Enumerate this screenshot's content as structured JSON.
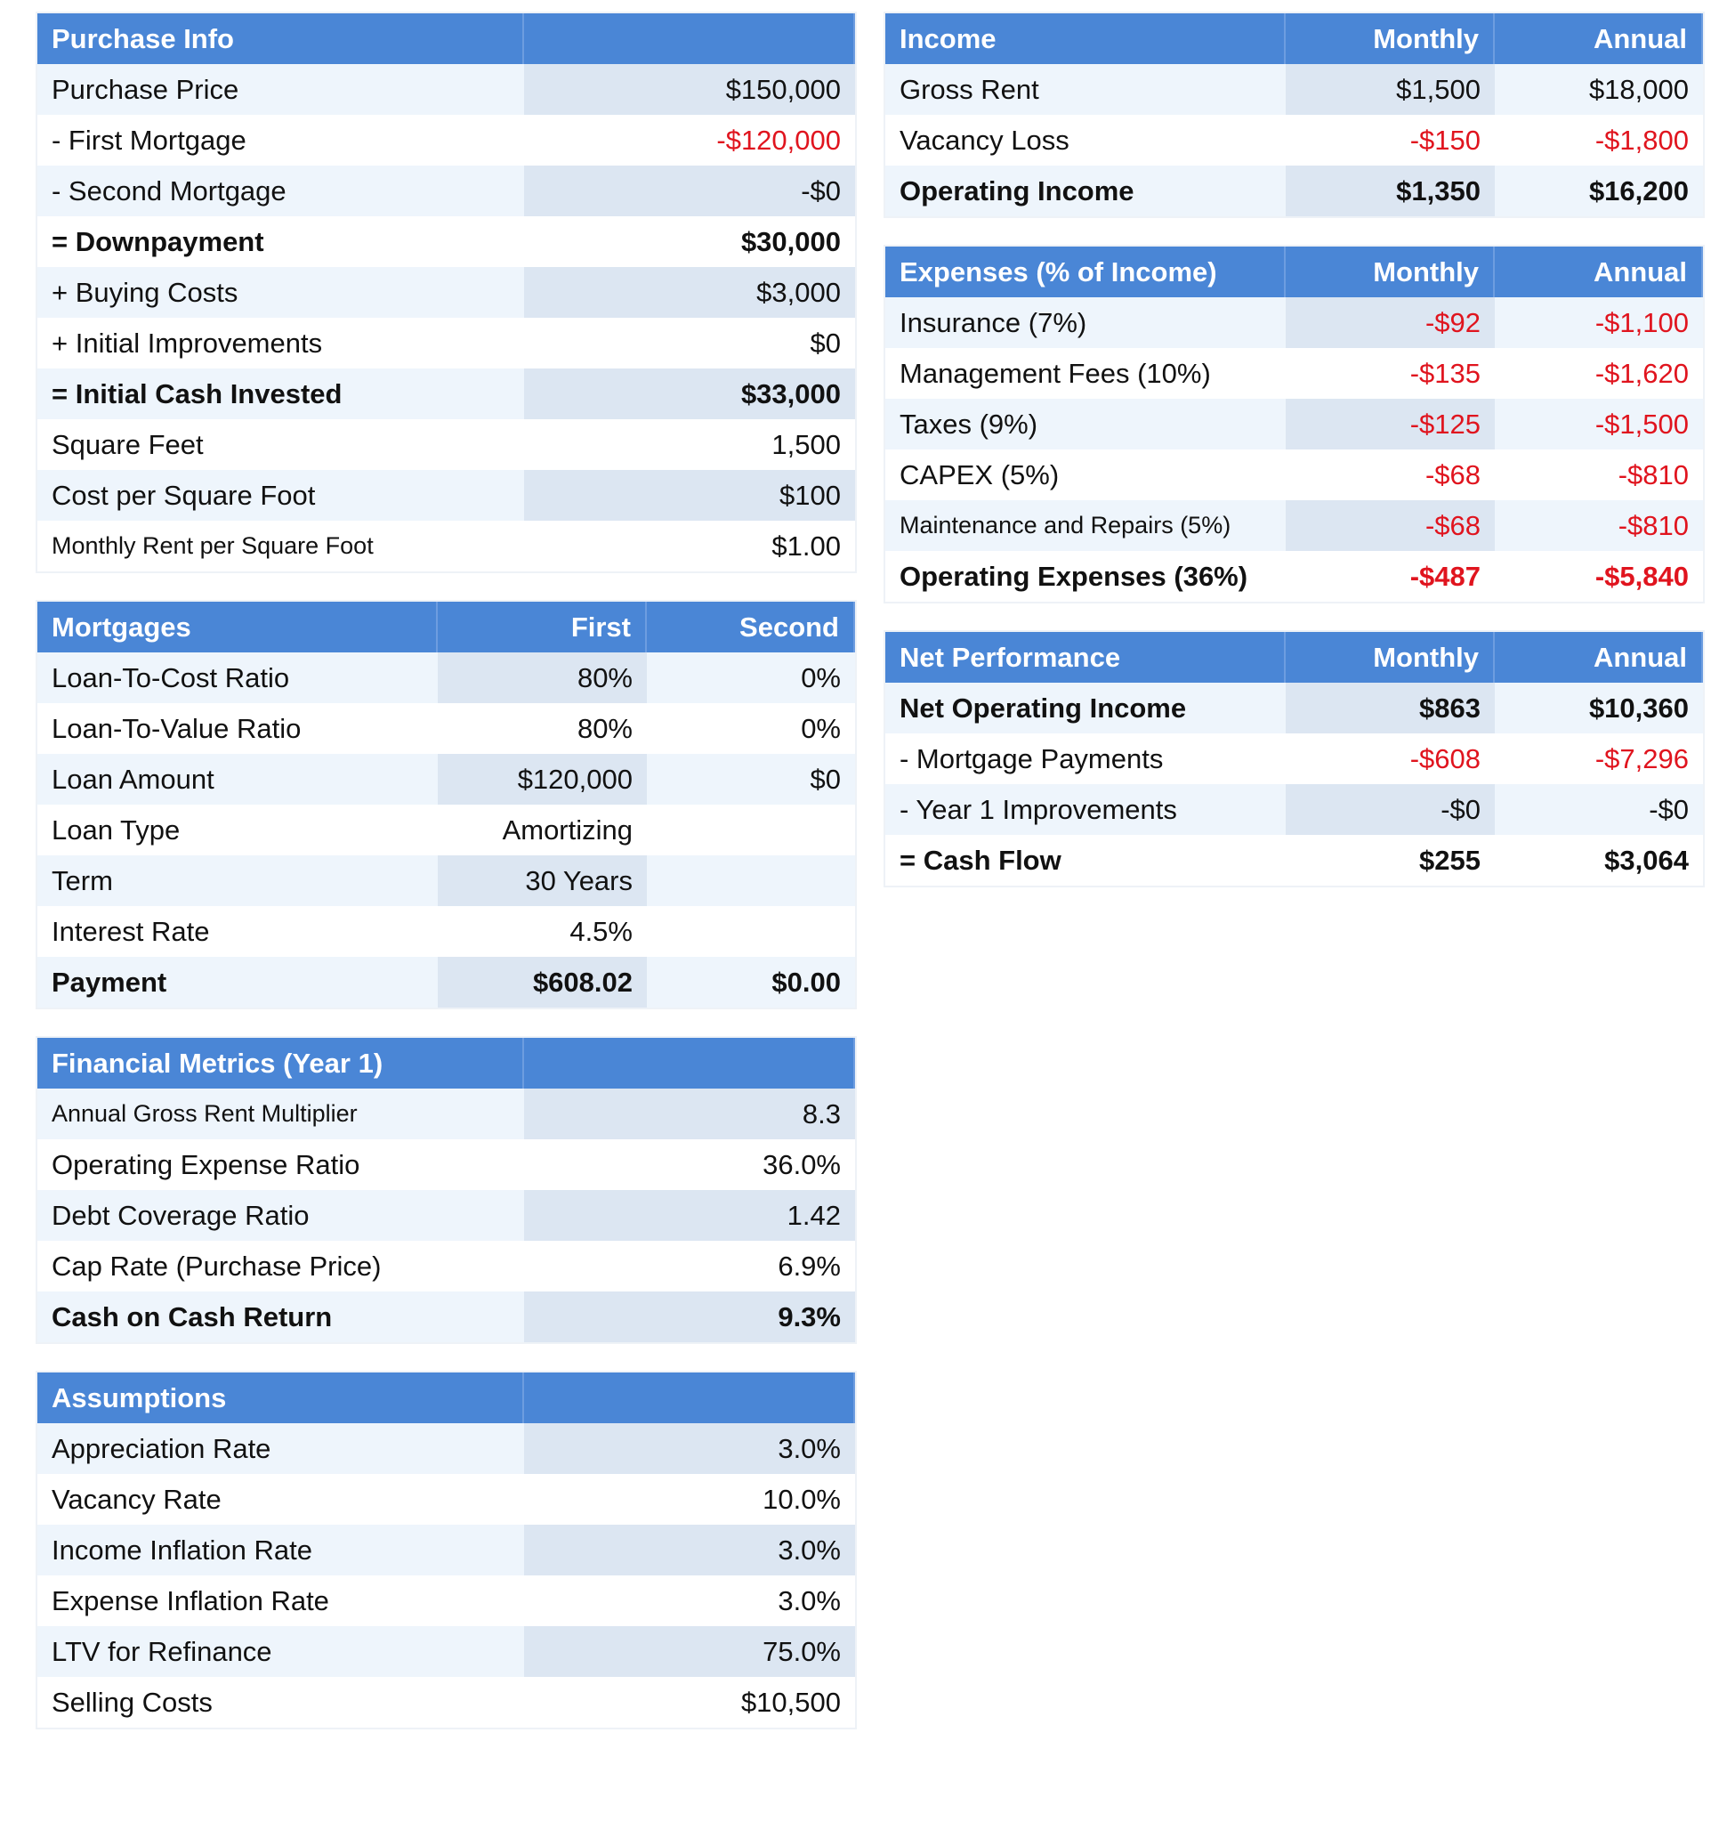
{
  "left": [
    {
      "title": "Purchase Info",
      "rows": [
        [
          "Purchase Price",
          "$150,000"
        ],
        [
          "- First Mortgage",
          "-$120,000"
        ],
        [
          "- Second Mortgage",
          "-$0"
        ],
        [
          "= Downpayment",
          "$30,000"
        ],
        [
          "+ Buying Costs",
          "$3,000"
        ],
        [
          "+ Initial Improvements",
          "$0"
        ],
        [
          "= Initial Cash Invested",
          "$33,000"
        ],
        [
          "Square Feet",
          "1,500"
        ],
        [
          "Cost per Square Foot",
          "$100"
        ],
        [
          "Monthly Rent per Square Foot",
          "$1.00"
        ]
      ]
    },
    {
      "title": "Mortgages",
      "headers": [
        "First",
        "Second"
      ],
      "rows": [
        [
          "Loan-To-Cost Ratio",
          "80%",
          "0%"
        ],
        [
          "Loan-To-Value Ratio",
          "80%",
          "0%"
        ],
        [
          "Loan Amount",
          "$120,000",
          "$0"
        ],
        [
          "Loan Type",
          "Amortizing"
        ],
        [
          "Term",
          "30 Years"
        ],
        [
          "Interest Rate",
          "4.5%"
        ],
        [
          "Payment",
          "$608.02",
          "$0.00"
        ]
      ]
    },
    {
      "title": "Financial Metrics (Year 1)",
      "rows": [
        [
          "Annual Gross Rent Multiplier",
          "8.3"
        ],
        [
          "Operating Expense Ratio",
          "36.0%"
        ],
        [
          "Debt Coverage Ratio",
          "1.42"
        ],
        [
          "Cap Rate (Purchase Price)",
          "6.9%"
        ],
        [
          "Cash on Cash Return",
          "9.3%"
        ]
      ]
    },
    {
      "title": "Assumptions",
      "rows": [
        [
          "Appreciation Rate",
          "3.0%"
        ],
        [
          "Vacancy Rate",
          "10.0%"
        ],
        [
          "Income Inflation Rate",
          "3.0%"
        ],
        [
          "Expense Inflation Rate",
          "3.0%"
        ],
        [
          "LTV for Refinance",
          "75.0%"
        ],
        [
          "Selling Costs",
          "$10,500"
        ]
      ]
    }
  ],
  "right": [
    {
      "title": "Income",
      "headers": [
        "Monthly",
        "Annual"
      ],
      "rows": [
        [
          "Gross Rent",
          "$1,500",
          "$18,000"
        ],
        [
          "Vacancy Loss",
          "-$150",
          "-$1,800"
        ],
        [
          "Operating Income",
          "$1,350",
          "$16,200"
        ]
      ]
    },
    {
      "title": "Expenses (% of Income)",
      "headers": [
        "Monthly",
        "Annual"
      ],
      "rows": [
        [
          "Insurance (7%)",
          "-$92",
          "-$1,100"
        ],
        [
          "Management Fees (10%)",
          "-$135",
          "-$1,620"
        ],
        [
          "Taxes (9%)",
          "-$125",
          "-$1,500"
        ],
        [
          "CAPEX (5%)",
          "-$68",
          "-$810"
        ],
        [
          "Maintenance and Repairs (5%)",
          "-$68",
          "-$810"
        ],
        [
          "Operating Expenses (36%)",
          "-$487",
          "-$5,840"
        ]
      ]
    },
    {
      "title": "Net Performance",
      "headers": [
        "Monthly",
        "Annual"
      ],
      "rows": [
        [
          "Net Operating Income",
          "$863",
          "$10,360"
        ],
        [
          "- Mortgage Payments",
          "-$608",
          "-$7,296"
        ],
        [
          "- Year 1 Improvements",
          "-$0",
          "-$0"
        ],
        [
          "= Cash Flow",
          "$255",
          "$3,064"
        ]
      ]
    }
  ]
}
